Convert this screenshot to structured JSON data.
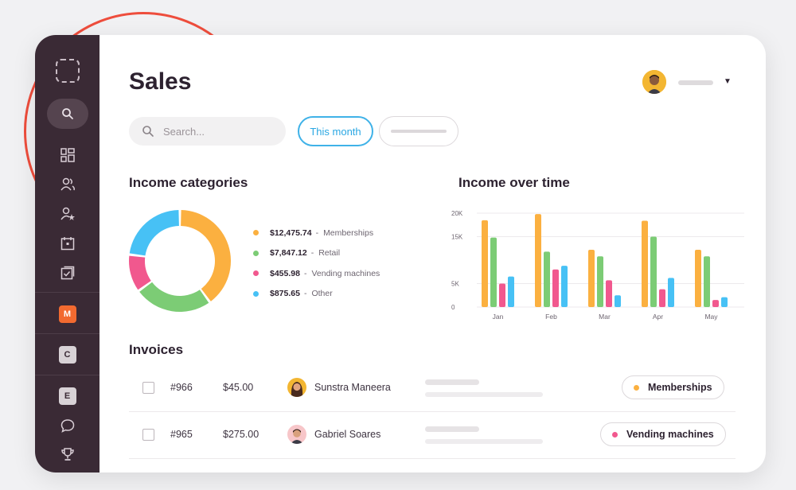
{
  "page": {
    "title": "Sales"
  },
  "search": {
    "placeholder": "Search..."
  },
  "filters": {
    "active_tab": "This month"
  },
  "sidebar": {
    "workspaces": [
      "M",
      "C",
      "E"
    ]
  },
  "income_categories": {
    "title": "Income categories",
    "items": [
      {
        "value": "$12,475.74",
        "label": "Memberships",
        "color": "#fbb040"
      },
      {
        "value": "$7,847.12",
        "label": "Retail",
        "color": "#7ccc75"
      },
      {
        "value": "$455.98",
        "label": "Vending machines",
        "color": "#f1588e"
      },
      {
        "value": "$875.65",
        "label": "Other",
        "color": "#47c1f5"
      }
    ]
  },
  "income_over_time": {
    "title": "Income over time"
  },
  "chart_data": [
    {
      "type": "pie",
      "categories": [
        "Memberships",
        "Retail",
        "Vending machines",
        "Other"
      ],
      "values": [
        40,
        25,
        12,
        23
      ],
      "colors": [
        "#fbb040",
        "#7ccc75",
        "#f1588e",
        "#47c1f5"
      ]
    },
    {
      "type": "bar",
      "categories": [
        "Jan",
        "Feb",
        "Mar",
        "Apr",
        "May"
      ],
      "y_ticks": [
        "20K",
        "15K",
        "5K",
        "0"
      ],
      "ylim": [
        0,
        20000
      ],
      "grid": true,
      "series": [
        {
          "values": [
            18500,
            19800,
            12200,
            18400,
            12200
          ],
          "color": "#fbb040"
        },
        {
          "values": [
            14800,
            11800,
            10800,
            15000,
            10800
          ],
          "color": "#7ccc75"
        },
        {
          "values": [
            5000,
            8000,
            5700,
            3800,
            1500
          ],
          "color": "#f1588e"
        },
        {
          "values": [
            6500,
            8800,
            2500,
            6200,
            2100
          ],
          "color": "#47c1f5"
        }
      ]
    }
  ],
  "invoices": {
    "title": "Invoices",
    "rows": [
      {
        "number": "#966",
        "amount": "$45.00",
        "name": "Sunstra Maneera",
        "category": "Memberships",
        "category_color": "#fbb040"
      },
      {
        "number": "#965",
        "amount": "$275.00",
        "name": "Gabriel Soares",
        "category": "Vending machines",
        "category_color": "#f1588e"
      }
    ]
  },
  "icons": {
    "sidebar": [
      "logo-placeholder-icon",
      "search-icon",
      "dashboard-icon",
      "users-icon",
      "user-star-icon",
      "calendar-icon",
      "checklist-icon",
      "chat-icon",
      "trophy-icon"
    ],
    "header": [
      "chevron-down-icon"
    ]
  }
}
